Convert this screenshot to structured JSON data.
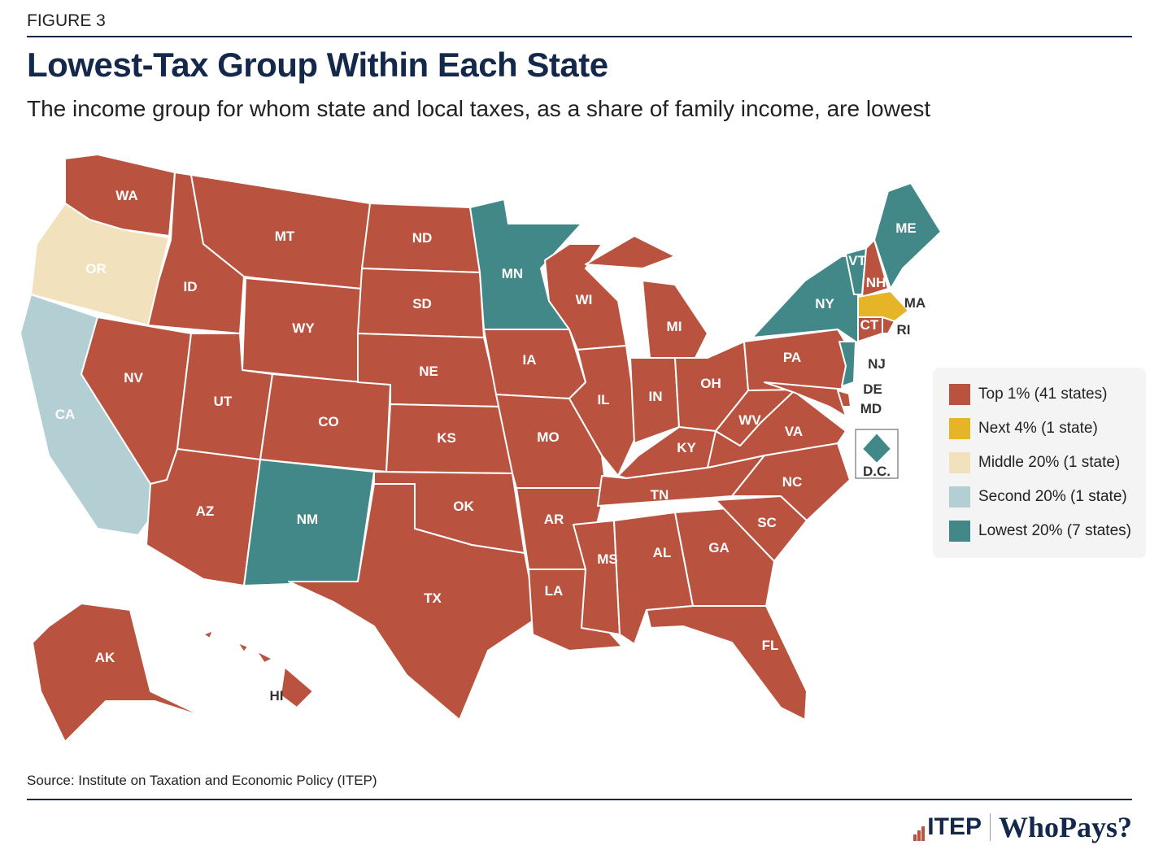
{
  "header": {
    "figure": "FIGURE 3",
    "title": "Lowest-Tax Group Within Each State",
    "subtitle": "The income group for whom state and local taxes, as a share of family income, are lowest"
  },
  "colors": {
    "top1": "#b9533f",
    "next4": "#e6b527",
    "middle20": "#f1e2bd",
    "second20": "#b3cfd3",
    "lowest20": "#428889",
    "navy": "#14284b"
  },
  "legend": [
    {
      "group": "top1",
      "label": "Top 1% (41 states)"
    },
    {
      "group": "next4",
      "label": "Next 4% (1 state)"
    },
    {
      "group": "middle20",
      "label": "Middle 20% (1 state)"
    },
    {
      "group": "second20",
      "label": "Second 20% (1 state)"
    },
    {
      "group": "lowest20",
      "label": "Lowest 20% (7 states)"
    }
  ],
  "states": [
    {
      "abbr": "WA",
      "group": "top1"
    },
    {
      "abbr": "OR",
      "group": "middle20"
    },
    {
      "abbr": "CA",
      "group": "second20"
    },
    {
      "abbr": "ID",
      "group": "top1"
    },
    {
      "abbr": "NV",
      "group": "top1"
    },
    {
      "abbr": "MT",
      "group": "top1"
    },
    {
      "abbr": "WY",
      "group": "top1"
    },
    {
      "abbr": "UT",
      "group": "top1"
    },
    {
      "abbr": "CO",
      "group": "top1"
    },
    {
      "abbr": "AZ",
      "group": "top1"
    },
    {
      "abbr": "NM",
      "group": "lowest20"
    },
    {
      "abbr": "ND",
      "group": "top1"
    },
    {
      "abbr": "SD",
      "group": "top1"
    },
    {
      "abbr": "NE",
      "group": "top1"
    },
    {
      "abbr": "KS",
      "group": "top1"
    },
    {
      "abbr": "OK",
      "group": "top1"
    },
    {
      "abbr": "TX",
      "group": "top1"
    },
    {
      "abbr": "MN",
      "group": "lowest20"
    },
    {
      "abbr": "IA",
      "group": "top1"
    },
    {
      "abbr": "MO",
      "group": "top1"
    },
    {
      "abbr": "AR",
      "group": "top1"
    },
    {
      "abbr": "LA",
      "group": "top1"
    },
    {
      "abbr": "WI",
      "group": "top1"
    },
    {
      "abbr": "IL",
      "group": "top1"
    },
    {
      "abbr": "MI",
      "group": "top1"
    },
    {
      "abbr": "IN",
      "group": "top1"
    },
    {
      "abbr": "OH",
      "group": "top1"
    },
    {
      "abbr": "KY",
      "group": "top1"
    },
    {
      "abbr": "TN",
      "group": "top1"
    },
    {
      "abbr": "MS",
      "group": "top1"
    },
    {
      "abbr": "AL",
      "group": "top1"
    },
    {
      "abbr": "GA",
      "group": "top1"
    },
    {
      "abbr": "FL",
      "group": "top1"
    },
    {
      "abbr": "SC",
      "group": "top1"
    },
    {
      "abbr": "NC",
      "group": "top1"
    },
    {
      "abbr": "VA",
      "group": "top1"
    },
    {
      "abbr": "WV",
      "group": "top1"
    },
    {
      "abbr": "PA",
      "group": "top1"
    },
    {
      "abbr": "NY",
      "group": "lowest20"
    },
    {
      "abbr": "NJ",
      "group": "lowest20"
    },
    {
      "abbr": "MD",
      "group": "top1"
    },
    {
      "abbr": "DE",
      "group": "top1"
    },
    {
      "abbr": "VT",
      "group": "lowest20"
    },
    {
      "abbr": "NH",
      "group": "top1"
    },
    {
      "abbr": "ME",
      "group": "lowest20"
    },
    {
      "abbr": "MA",
      "group": "next4"
    },
    {
      "abbr": "CT",
      "group": "top1"
    },
    {
      "abbr": "RI",
      "group": "top1"
    },
    {
      "abbr": "AK",
      "group": "top1"
    },
    {
      "abbr": "HI",
      "group": "top1"
    },
    {
      "abbr": "D.C.",
      "group": "lowest20"
    }
  ],
  "footer": {
    "source": "Source: Institute on Taxation and Economic Policy (ITEP)",
    "logo_itep": "ITEP",
    "logo_whopays": "WhoPays?"
  }
}
